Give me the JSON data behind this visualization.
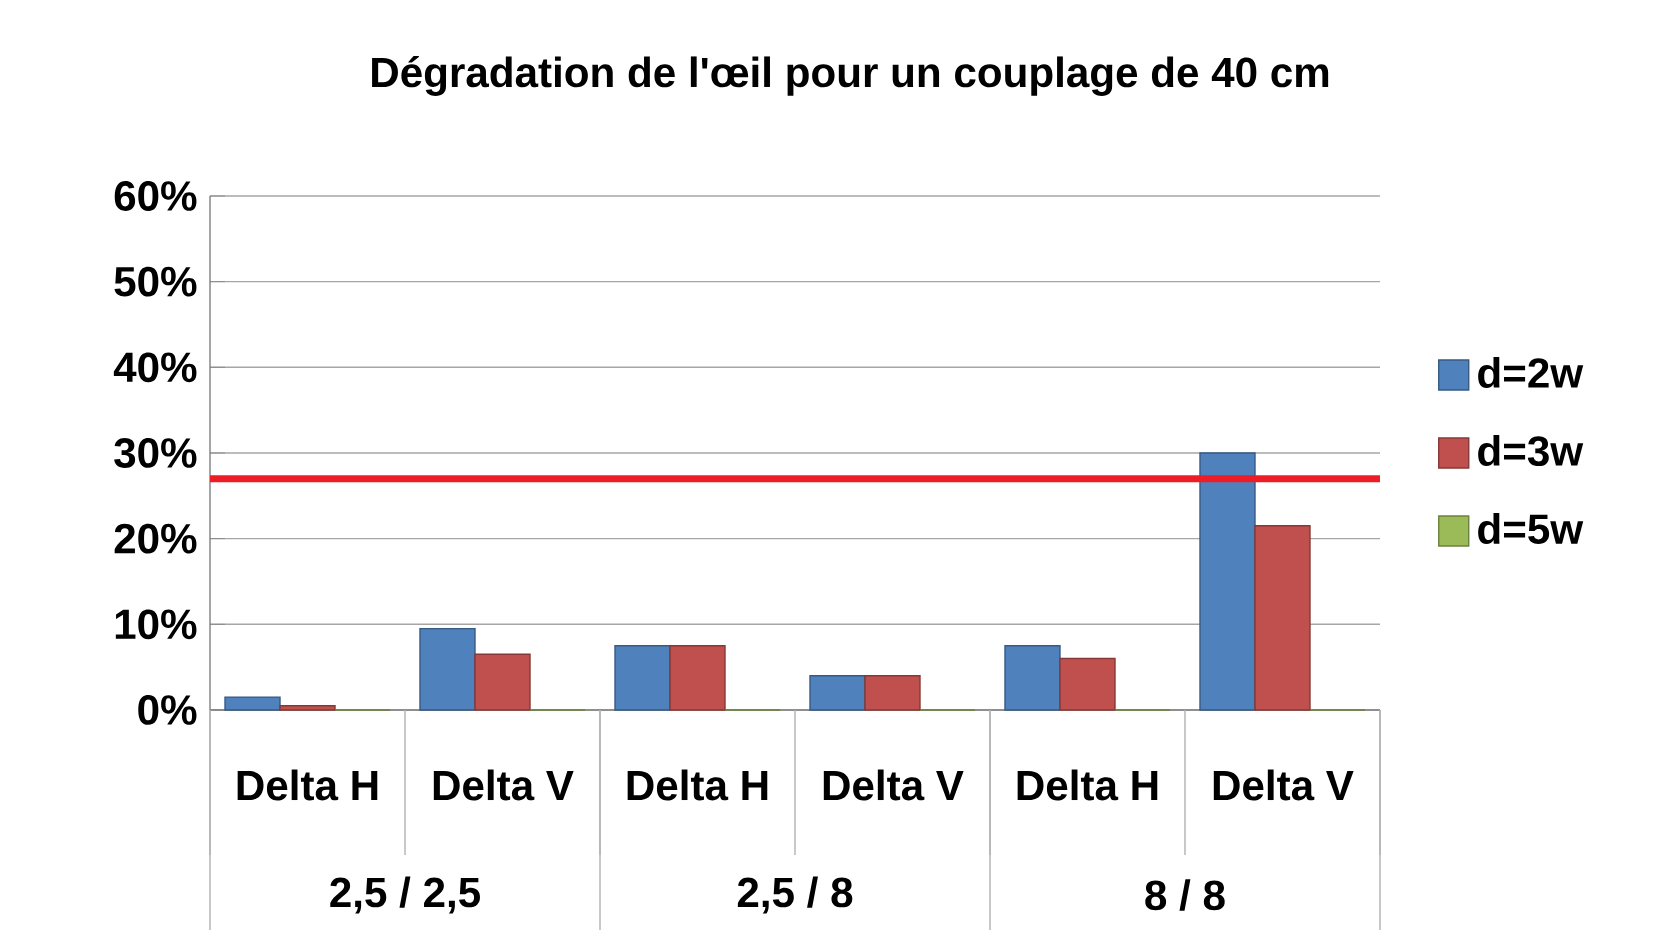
{
  "chart_data": {
    "type": "bar",
    "title": "Dégradation de l'œil pour un couplage de 40 cm",
    "categories": [
      "Delta H",
      "Delta V",
      "Delta H",
      "Delta V",
      "Delta H",
      "Delta V"
    ],
    "series": [
      {
        "name": "d=2w",
        "color": "#4f81bd",
        "values": [
          1.5,
          9.5,
          7.5,
          4,
          7.5,
          30
        ]
      },
      {
        "name": "d=3w",
        "color": "#c0504d",
        "values": [
          0.5,
          6.5,
          7.5,
          4,
          6,
          21.5
        ]
      },
      {
        "name": "d=5w",
        "color": "#9bbb59",
        "values": [
          0,
          0,
          0,
          0,
          0,
          0
        ]
      }
    ],
    "ylim": [
      0,
      60
    ],
    "yticks": [
      {
        "value": 0,
        "label": "0%"
      },
      {
        "value": 10,
        "label": "10%"
      },
      {
        "value": 20,
        "label": "20%"
      },
      {
        "value": 30,
        "label": "30%"
      },
      {
        "value": 40,
        "label": "40%"
      },
      {
        "value": 50,
        "label": "50%"
      },
      {
        "value": 60,
        "label": "60%"
      }
    ],
    "ref_lines": [
      {
        "axis": "y",
        "value": 27,
        "color": "#ee1c25"
      }
    ],
    "annotations": [
      "2,5 / 2,5",
      "2,5 / 8",
      "8 / 8"
    ],
    "grid": "y",
    "legend": "right"
  }
}
